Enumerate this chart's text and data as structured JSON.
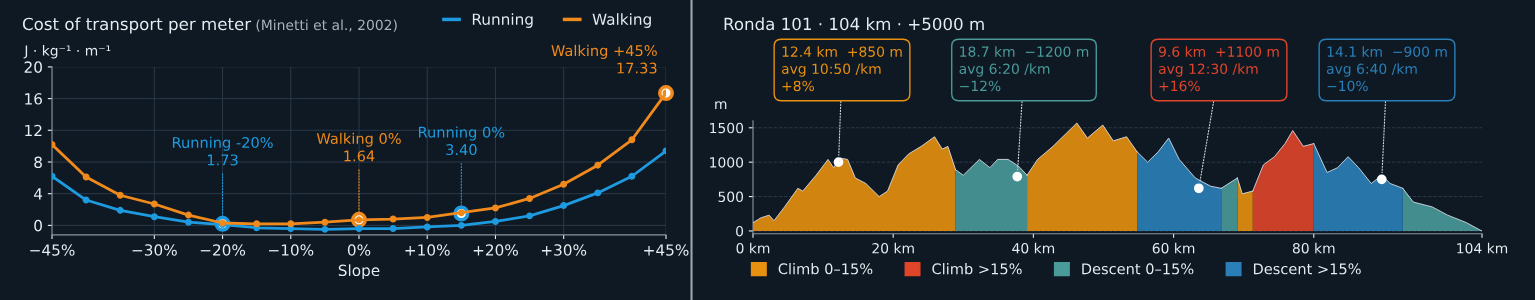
{
  "chart_data": [
    {
      "type": "line",
      "title": "Cost of transport per meter",
      "subtitle": "(Minetti et al., 2002)",
      "ylabel": "J · kg⁻¹ · m⁻¹",
      "xlabel": "Slope",
      "x": [
        -45,
        -40,
        -35,
        -30,
        -25,
        -20,
        -15,
        -10,
        -5,
        0,
        5,
        10,
        15,
        20,
        25,
        30,
        35,
        40,
        45
      ],
      "series": [
        {
          "name": "Running",
          "color": "#1e9be0",
          "values": [
            6.2,
            3.2,
            1.9,
            1.1,
            0.4,
            0.1,
            -0.3,
            -0.4,
            -0.5,
            -0.4,
            -0.4,
            -0.2,
            0.0,
            0.5,
            1.2,
            2.5,
            4.1,
            6.2,
            9.4
          ]
        },
        {
          "name": "Walking",
          "color": "#f08a1c",
          "values": [
            10.2,
            6.1,
            3.8,
            2.7,
            1.3,
            0.3,
            0.2,
            0.2,
            0.4,
            0.7,
            0.8,
            1.0,
            1.6,
            2.2,
            3.4,
            5.2,
            7.6,
            10.8,
            16.7
          ]
        }
      ],
      "xlim": [
        -45,
        45
      ],
      "xticks": [
        {
          "value": -45,
          "label": "−45%"
        },
        {
          "value": -30,
          "label": "−30%"
        },
        {
          "value": -20,
          "label": "−20%"
        },
        {
          "value": -10,
          "label": "−10%"
        },
        {
          "value": 0,
          "label": "0%"
        },
        {
          "value": 10,
          "label": "+10%"
        },
        {
          "value": 20,
          "label": "+20%"
        },
        {
          "value": 30,
          "label": "+30%"
        },
        {
          "value": 45,
          "label": "+45%"
        }
      ],
      "ylim": [
        -1.2,
        20
      ],
      "yticks": [
        0,
        4,
        8,
        12,
        16,
        20
      ],
      "annotations": [
        {
          "text": "Running -20%\n1.73",
          "x": -20,
          "y": 0.2
        },
        {
          "text": "Walking 0%\n1.64",
          "x": 0,
          "y": 0.7
        },
        {
          "text": "Running 0%\n3.40",
          "x": 15,
          "y": 1.5
        },
        {
          "text": "Walking +45%\n17.33",
          "x": 45,
          "y": 16.7
        }
      ],
      "grid": true,
      "legend": "top right",
      "marker": "circle",
      "line_style": "solid"
    },
    {
      "type": "area",
      "title": "Ronda 101 · 104 km · +5000 m",
      "ylabel": "m",
      "x": [
        0,
        1.1,
        2.3,
        3,
        4.5,
        6.4,
        7.1,
        9,
        10.7,
        11.5,
        12.4,
        13.5,
        14.6,
        16.1,
        18,
        19.2,
        20.7,
        22.2,
        24,
        25.9,
        27,
        27.8,
        28.9,
        30,
        32.3,
        33.8,
        34.9,
        36.4,
        37.9,
        39.1,
        40.6,
        42.8,
        44.7,
        46.2,
        47.7,
        49.9,
        51.4,
        53.3,
        54.8,
        56.3,
        57.8,
        59.3,
        60.8,
        63.1,
        65.3,
        66.8,
        69.1,
        69.8,
        71.3,
        72.8,
        74.4,
        75.9,
        77,
        78.5,
        80,
        81.9,
        83.4,
        84.9,
        86.4,
        88.2,
        89.7,
        90.9,
        92.7,
        94.2,
        96.9,
        99.1,
        101.8,
        103.6,
        104
      ],
      "series": [
        {
          "name": "Climb 0–15%",
          "color": "#e8900f",
          "values": [
            120,
            190,
            230,
            150,
            350,
            620,
            580,
            810,
            1040,
            920,
            1060,
            1040,
            770,
            690,
            500,
            580,
            960,
            1120,
            1230,
            1370,
            1190,
            1230,
            890,
            null,
            null,
            null,
            null,
            null,
            null,
            810,
            1040,
            1230,
            1420,
            1570,
            1350,
            1540,
            1310,
            1370,
            1150,
            null,
            null,
            null,
            null,
            null,
            null,
            null,
            770,
            540,
            580,
            null,
            null,
            null,
            null,
            null,
            null,
            null,
            null,
            null,
            null,
            null,
            null,
            null,
            null,
            null,
            null,
            null,
            null,
            null,
            null
          ]
        },
        {
          "name": "Climb >15%",
          "color": "#e0452a",
          "values": [
            null,
            null,
            null,
            null,
            null,
            null,
            null,
            null,
            null,
            null,
            null,
            null,
            null,
            null,
            null,
            null,
            null,
            null,
            null,
            null,
            null,
            null,
            null,
            null,
            null,
            null,
            null,
            null,
            null,
            null,
            null,
            null,
            null,
            null,
            null,
            null,
            null,
            null,
            null,
            null,
            null,
            null,
            null,
            null,
            null,
            null,
            null,
            null,
            580,
            960,
            1080,
            1270,
            1460,
            1230,
            1270,
            null,
            null,
            null,
            null,
            null,
            null,
            null,
            null,
            null,
            null,
            null,
            null,
            null,
            null
          ]
        },
        {
          "name": "Descent 0–15%",
          "color": "#4a9a9a",
          "values": [
            null,
            null,
            null,
            null,
            null,
            null,
            null,
            null,
            null,
            null,
            null,
            null,
            null,
            null,
            null,
            null,
            null,
            null,
            null,
            null,
            null,
            null,
            890,
            810,
            1040,
            920,
            1040,
            1040,
            940,
            810,
            null,
            null,
            null,
            null,
            null,
            null,
            null,
            null,
            null,
            null,
            null,
            null,
            null,
            null,
            null,
            620,
            770,
            null,
            null,
            null,
            null,
            null,
            null,
            null,
            null,
            null,
            null,
            null,
            null,
            null,
            null,
            null,
            620,
            420,
            350,
            230,
            120,
            20,
            0
          ]
        },
        {
          "name": "Descent >15%",
          "color": "#2a7fb8",
          "values": [
            null,
            null,
            null,
            null,
            null,
            null,
            null,
            null,
            null,
            null,
            null,
            null,
            null,
            null,
            null,
            null,
            null,
            null,
            null,
            null,
            null,
            null,
            null,
            null,
            null,
            null,
            null,
            null,
            null,
            null,
            null,
            null,
            null,
            null,
            null,
            null,
            null,
            null,
            1150,
            1000,
            1150,
            1350,
            1040,
            770,
            650,
            620,
            null,
            null,
            null,
            null,
            null,
            null,
            null,
            null,
            1270,
            850,
            920,
            1080,
            920,
            690,
            810,
            690,
            620,
            null,
            null,
            null,
            null,
            null,
            null
          ]
        }
      ],
      "xlim": [
        0,
        104
      ],
      "xticks": [
        {
          "value": 0,
          "label": "0 km"
        },
        {
          "value": 20,
          "label": "20 km"
        },
        {
          "value": 40,
          "label": "40 km"
        },
        {
          "value": 60,
          "label": "60 km"
        },
        {
          "value": 80,
          "label": "80 km"
        },
        {
          "value": 104,
          "label": "104 km"
        }
      ],
      "ylim": [
        -40,
        1600
      ],
      "yticks": [
        0,
        500,
        1000,
        1500
      ],
      "annotations": [
        {
          "text": "12.4 km  +850 m\navg 10:50 /km\n+8%",
          "x": 12.2,
          "y": 1000
        },
        {
          "text": "18.7 km  −1200 m\navg 6:20 /km\n−12%",
          "x": 37.7,
          "y": 790
        },
        {
          "text": "9.6 km  +1100 m\navg 12:30 /km\n+16%",
          "x": 63.6,
          "y": 620
        },
        {
          "text": "14.1 km  −900 m\navg 6:40 /km\n−10%",
          "x": 89.7,
          "y": 750
        }
      ],
      "grid": "y",
      "legend": "bottom"
    }
  ]
}
